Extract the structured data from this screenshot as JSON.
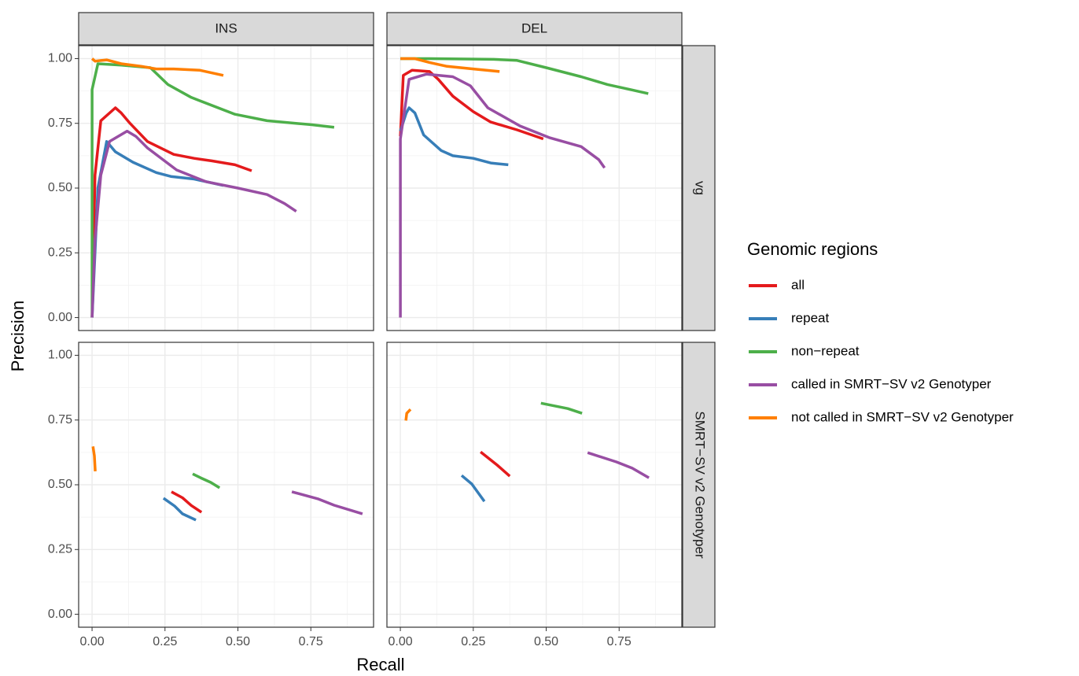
{
  "chart_data": [
    {
      "type": "line",
      "title": "INS",
      "xlabel": "Recall",
      "ylabel": "Precision",
      "legend_title": "Genomic regions",
      "xlim": [
        -0.046,
        0.965
      ],
      "ylim": [
        -0.05,
        1.05
      ],
      "xticks": [
        {
          "value": 0,
          "label": "0.00"
        },
        {
          "value": 0.25,
          "label": "0.25"
        },
        {
          "value": 0.5,
          "label": "0.50"
        },
        {
          "value": 0.75,
          "label": "0.75"
        }
      ],
      "yticks": [
        {
          "value": 0,
          "label": "0.00"
        },
        {
          "value": 0.25,
          "label": "0.25"
        },
        {
          "value": 0.5,
          "label": "0.50"
        },
        {
          "value": 0.75,
          "label": "0.75"
        },
        {
          "value": 1,
          "label": "1.00"
        }
      ],
      "series": [
        {
          "name": "all",
          "color": "#e41a1c",
          "x": [
            0.0,
            0.01,
            0.03,
            0.08,
            0.1,
            0.13,
            0.19,
            0.28,
            0.35,
            0.41,
            0.49,
            0.547
          ],
          "values": [
            0.0,
            0.55,
            0.76,
            0.81,
            0.79,
            0.75,
            0.68,
            0.63,
            0.615,
            0.605,
            0.59,
            0.567
          ]
        },
        {
          "name": "repeat",
          "color": "#377eb8",
          "x": [
            0.0,
            0.02,
            0.05,
            0.08,
            0.14,
            0.22,
            0.27,
            0.35,
            0.45
          ],
          "values": [
            0.0,
            0.5,
            0.68,
            0.64,
            0.6,
            0.56,
            0.545,
            0.535,
            0.51
          ]
        },
        {
          "name": "non−repeat",
          "color": "#4daf4a",
          "x": [
            0.0,
            0.0,
            0.02,
            0.1,
            0.2,
            0.26,
            0.34,
            0.49,
            0.6,
            0.75,
            0.83
          ],
          "values": [
            0.0,
            0.88,
            0.98,
            0.975,
            0.965,
            0.9,
            0.85,
            0.785,
            0.76,
            0.745,
            0.735
          ]
        },
        {
          "name": "called in SMRT−SV v2 Genotyper",
          "color": "#984ea3",
          "x": [
            0.0,
            0.01,
            0.03,
            0.06,
            0.12,
            0.15,
            0.19,
            0.29,
            0.39,
            0.5,
            0.6,
            0.66,
            0.7
          ],
          "values": [
            0.0,
            0.3,
            0.55,
            0.68,
            0.72,
            0.7,
            0.655,
            0.57,
            0.525,
            0.5,
            0.475,
            0.44,
            0.41
          ]
        },
        {
          "name": "not called in SMRT−SV v2 Genotyper",
          "color": "#ff7f00",
          "x": [
            0.0,
            0.01,
            0.05,
            0.1,
            0.17,
            0.22,
            0.28,
            0.37,
            0.45
          ],
          "values": [
            1.0,
            0.99,
            0.995,
            0.98,
            0.97,
            0.96,
            0.96,
            0.955,
            0.935
          ]
        }
      ]
    },
    {
      "type": "line",
      "title": "DEL",
      "row_label": "vg",
      "xlim": [
        -0.046,
        0.965
      ],
      "ylim": [
        -0.05,
        1.05
      ],
      "xticks": [
        0,
        0.25,
        0.5,
        0.75
      ],
      "yticks": [
        0,
        0.25,
        0.5,
        0.75,
        1
      ],
      "series": [
        {
          "color": "#e41a1c",
          "x": [
            0.0,
            0.01,
            0.04,
            0.1,
            0.13,
            0.18,
            0.25,
            0.31,
            0.4,
            0.49
          ],
          "values": [
            0.7,
            0.935,
            0.955,
            0.95,
            0.92,
            0.855,
            0.795,
            0.755,
            0.725,
            0.69
          ]
        },
        {
          "color": "#377eb8",
          "x": [
            0.0,
            0.02,
            0.03,
            0.05,
            0.08,
            0.14,
            0.18,
            0.25,
            0.31,
            0.37
          ],
          "values": [
            0.72,
            0.79,
            0.81,
            0.79,
            0.705,
            0.645,
            0.625,
            0.615,
            0.597,
            0.59
          ]
        },
        {
          "color": "#4daf4a",
          "x": [
            0.0,
            0.1,
            0.32,
            0.4,
            0.5,
            0.62,
            0.71,
            0.79,
            0.85
          ],
          "values": [
            1.0,
            1.0,
            0.997,
            0.993,
            0.965,
            0.93,
            0.9,
            0.88,
            0.865
          ]
        },
        {
          "color": "#984ea3",
          "x": [
            0.0,
            0.0,
            0.03,
            0.09,
            0.18,
            0.24,
            0.3,
            0.41,
            0.51,
            0.62,
            0.68,
            0.7
          ],
          "values": [
            0.0,
            0.69,
            0.92,
            0.94,
            0.93,
            0.895,
            0.81,
            0.74,
            0.695,
            0.66,
            0.61,
            0.578
          ]
        },
        {
          "color": "#ff7f00",
          "x": [
            0.0,
            0.05,
            0.1,
            0.16,
            0.25,
            0.34
          ],
          "values": [
            1.0,
            1.0,
            0.985,
            0.97,
            0.96,
            0.95
          ]
        }
      ]
    },
    {
      "type": "line",
      "xlim": [
        -0.046,
        0.965
      ],
      "ylim": [
        -0.05,
        1.05
      ],
      "xticks": [
        {
          "value": 0,
          "label": "0.00"
        },
        {
          "value": 0.25,
          "label": "0.25"
        },
        {
          "value": 0.5,
          "label": "0.50"
        },
        {
          "value": 0.75,
          "label": "0.75"
        }
      ],
      "yticks": [
        {
          "value": 0,
          "label": "0.00"
        },
        {
          "value": 0.25,
          "label": "0.25"
        },
        {
          "value": 0.5,
          "label": "0.50"
        },
        {
          "value": 0.75,
          "label": "0.75"
        },
        {
          "value": 1,
          "label": "1.00"
        }
      ],
      "series": [
        {
          "color": "#e41a1c",
          "x": [
            0.272,
            0.31,
            0.34,
            0.375
          ],
          "values": [
            0.473,
            0.45,
            0.42,
            0.394
          ]
        },
        {
          "color": "#377eb8",
          "x": [
            0.245,
            0.283,
            0.31,
            0.356
          ],
          "values": [
            0.448,
            0.418,
            0.388,
            0.364
          ]
        },
        {
          "color": "#4daf4a",
          "x": [
            0.345,
            0.372,
            0.407,
            0.437
          ],
          "values": [
            0.542,
            0.527,
            0.509,
            0.488
          ]
        },
        {
          "color": "#984ea3",
          "x": [
            0.685,
            0.776,
            0.83,
            0.927
          ],
          "values": [
            0.473,
            0.445,
            0.421,
            0.388
          ]
        },
        {
          "color": "#ff7f00",
          "x": [
            0.003,
            0.008,
            0.011
          ],
          "values": [
            0.648,
            0.612,
            0.552
          ]
        }
      ]
    },
    {
      "type": "line",
      "row_label": "SMRT−SV v2 Genotyper",
      "xlim": [
        -0.046,
        0.965
      ],
      "ylim": [
        -0.05,
        1.05
      ],
      "xticks": [
        {
          "value": 0,
          "label": "0.00"
        },
        {
          "value": 0.25,
          "label": "0.25"
        },
        {
          "value": 0.5,
          "label": "0.50"
        },
        {
          "value": 0.75,
          "label": "0.75"
        }
      ],
      "yticks": [
        0,
        0.25,
        0.5,
        0.75,
        1
      ],
      "series": [
        {
          "color": "#e41a1c",
          "x": [
            0.275,
            0.332,
            0.375
          ],
          "values": [
            0.627,
            0.576,
            0.533
          ]
        },
        {
          "color": "#377eb8",
          "x": [
            0.21,
            0.245,
            0.288
          ],
          "values": [
            0.536,
            0.503,
            0.436
          ]
        },
        {
          "color": "#4daf4a",
          "x": [
            0.482,
            0.574,
            0.623
          ],
          "values": [
            0.815,
            0.794,
            0.776
          ]
        },
        {
          "color": "#984ea3",
          "x": [
            0.642,
            0.741,
            0.795,
            0.852
          ],
          "values": [
            0.624,
            0.588,
            0.564,
            0.527
          ]
        },
        {
          "color": "#ff7f00",
          "x": [
            0.019,
            0.022,
            0.035
          ],
          "values": [
            0.748,
            0.776,
            0.791
          ]
        }
      ]
    }
  ]
}
